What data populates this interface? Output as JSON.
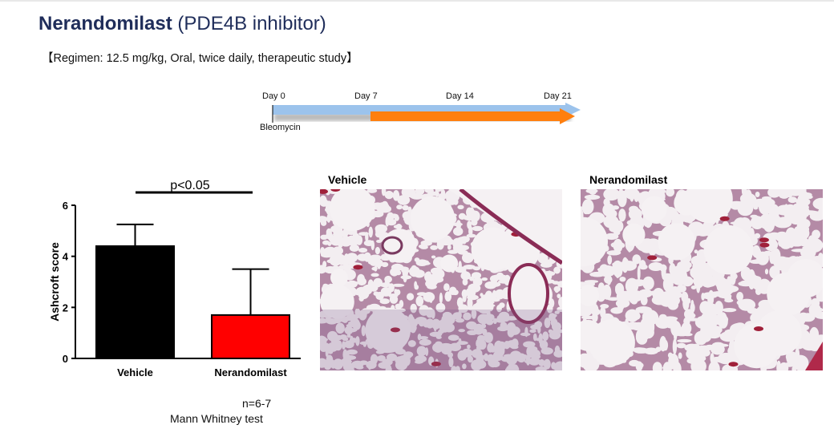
{
  "header": {
    "title_bold": "Nerandomilast",
    "title_rest": "(PDE4B inhibitor)",
    "regimen": "【Regimen: 12.5 mg/kg, Oral, twice daily, therapeutic study】"
  },
  "timeline": {
    "days": [
      "Day 0",
      "Day 7",
      "Day 14",
      "Day 21"
    ],
    "event": "Bleomycin",
    "colors": {
      "bleomycin_arrow": "#9cc3ec",
      "treatment_arrow": "#ff7f0e"
    }
  },
  "chart_data": {
    "type": "bar",
    "categories": [
      "Vehicle",
      "Nerandomilast"
    ],
    "values": [
      4.4,
      1.7
    ],
    "error_upper": [
      5.25,
      3.5
    ],
    "colors": [
      "#000000",
      "#ff0000"
    ],
    "ylabel": "Ashcroft score",
    "ylim": [
      0,
      6
    ],
    "yticks": [
      "0",
      "2",
      "4",
      "6"
    ],
    "annotation": "p<0.05",
    "grid": false
  },
  "notes": {
    "n": "n=6-7",
    "test": "Mann Whitney test"
  },
  "images": [
    {
      "label": "Vehicle"
    },
    {
      "label": "Nerandomilast"
    }
  ]
}
